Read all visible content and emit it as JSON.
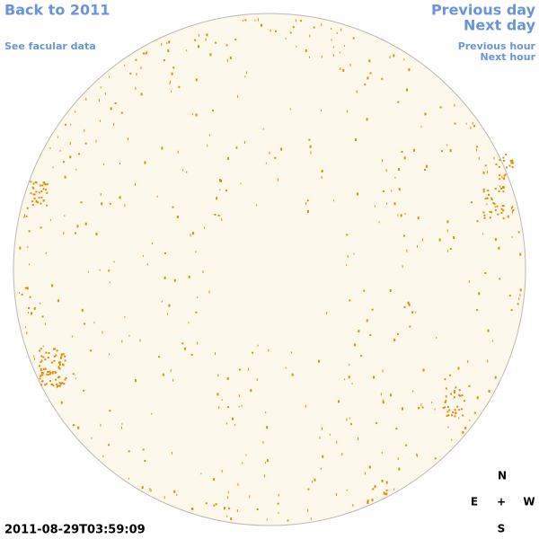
{
  "links": {
    "back": "Back to 2011",
    "facular": "See facular data",
    "previous_day": "Previous day",
    "next_day": "Next day",
    "previous_hour": "Previous hour",
    "next_hour": "Next hour"
  },
  "timestamp": "2011-08-29T03:59:09",
  "compass": {
    "north": "N",
    "east": "E",
    "center": "+",
    "west": "W",
    "south": "S"
  }
}
